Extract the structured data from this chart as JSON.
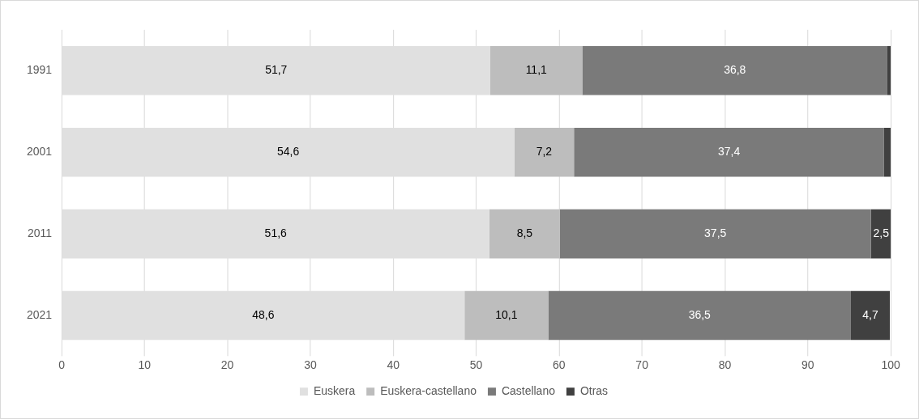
{
  "chart_data": {
    "type": "bar",
    "orientation": "horizontal",
    "stacked": true,
    "categories": [
      "1991",
      "2001",
      "2011",
      "2021"
    ],
    "series": [
      {
        "name": "Euskera",
        "color": "#e0e0e0",
        "values": [
          51.7,
          54.6,
          51.6,
          48.6
        ],
        "value_labels": [
          "51,7",
          "54,6",
          "51,6",
          "48,6"
        ]
      },
      {
        "name": "Euskera-castellano",
        "color": "#bdbdbd",
        "values": [
          11.1,
          7.2,
          8.5,
          10.1
        ],
        "value_labels": [
          "11,1",
          "7,2",
          "8,5",
          "10,1"
        ]
      },
      {
        "name": "Castellano",
        "color": "#7a7a7a",
        "values": [
          36.8,
          37.4,
          37.5,
          36.5
        ],
        "value_labels": [
          "36,8",
          "37,4",
          "37,5",
          "36,5"
        ]
      },
      {
        "name": "Otras",
        "color": "#404040",
        "values": [
          0.4,
          0.8,
          2.5,
          4.7
        ],
        "value_labels": [
          null,
          null,
          "2,5",
          "4,7"
        ]
      }
    ],
    "xlim": [
      0,
      100
    ],
    "xticks": [
      0,
      10,
      20,
      30,
      40,
      50,
      60,
      70,
      80,
      90,
      100
    ],
    "grid": "x",
    "legend": "bottom"
  }
}
